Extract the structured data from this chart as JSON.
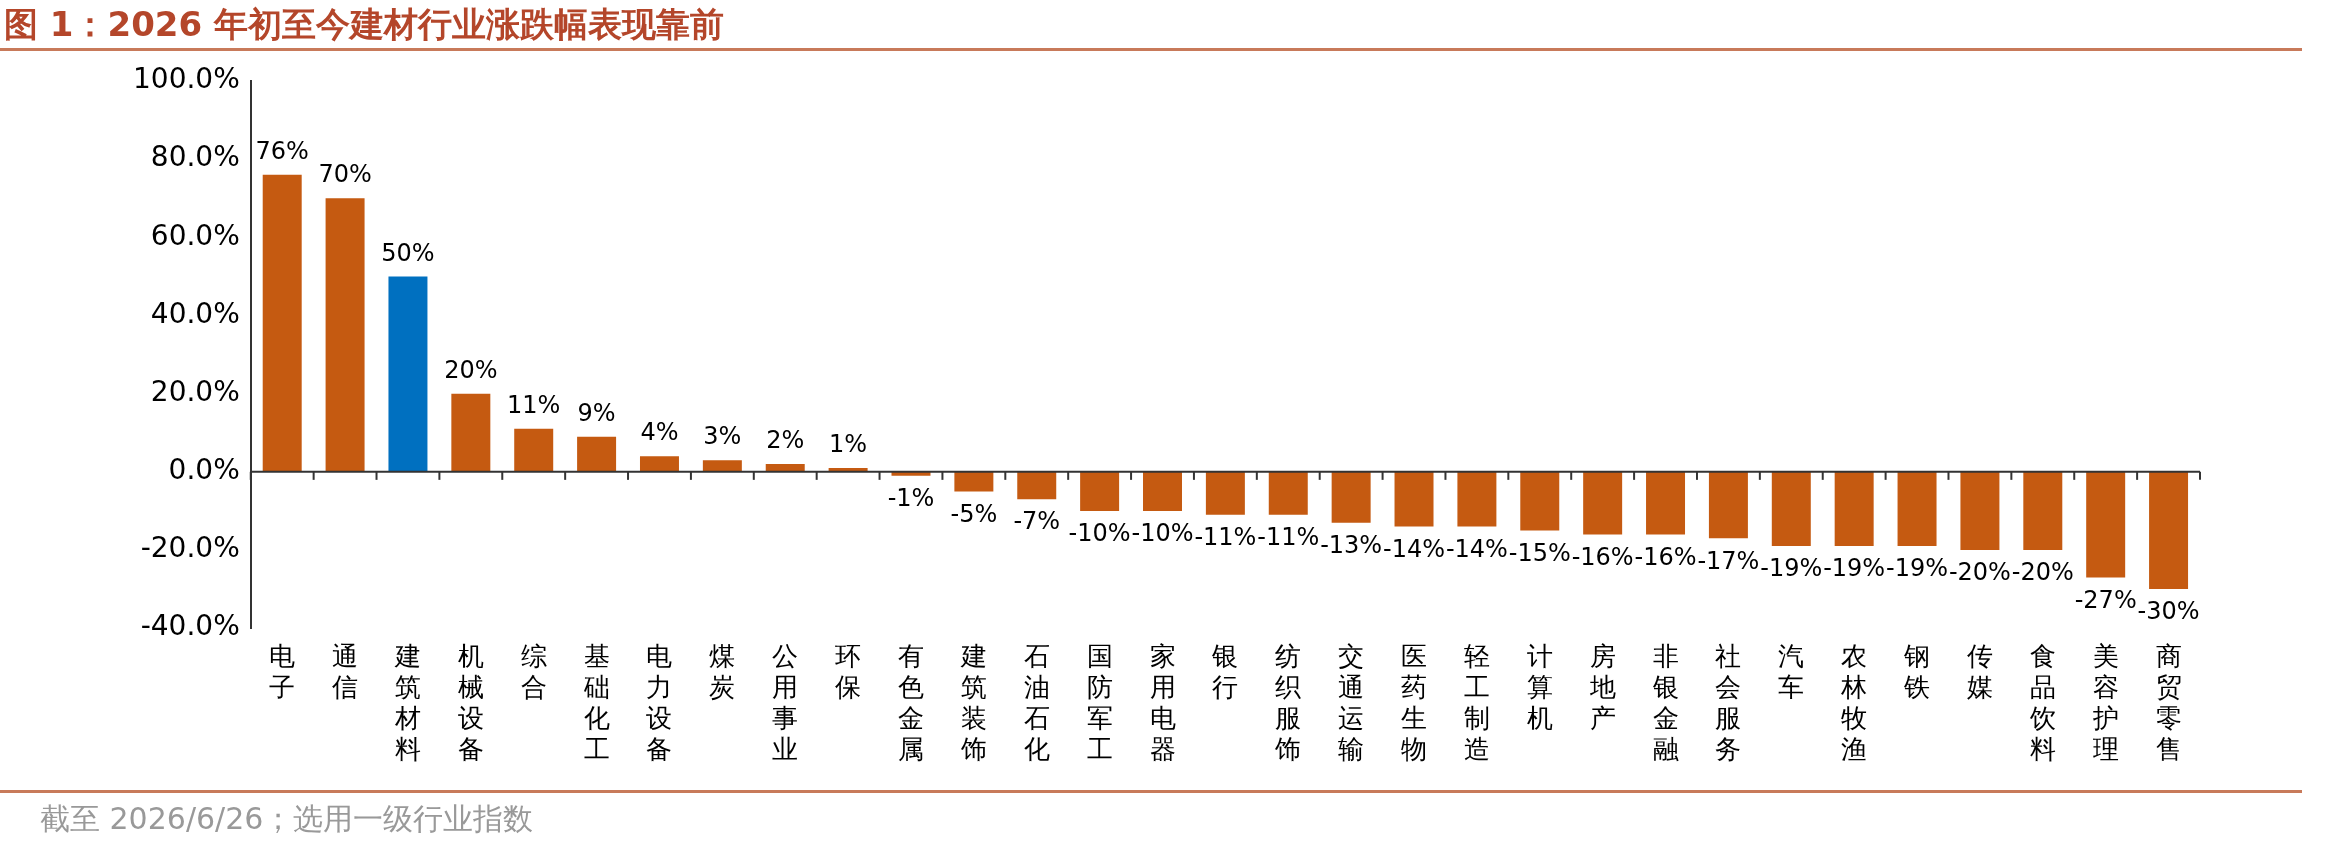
{
  "chart_data": {
    "type": "bar",
    "title": "图 1：2026 年初至今建材行业涨跌幅表现靠前",
    "categories": [
      "电子",
      "通信",
      "建筑材料",
      "机械设备",
      "综合",
      "基础化工",
      "电力设备",
      "煤炭",
      "公用事业",
      "环保",
      "有色金属",
      "建筑装饰",
      "石油石化",
      "国防军工",
      "家用电器",
      "银行",
      "纺织服饰",
      "交通运输",
      "医药生物",
      "轻工制造",
      "计算机",
      "房地产",
      "非银金融",
      "社会服务",
      "汽车",
      "农林牧渔",
      "钢铁",
      "传媒",
      "食品饮料",
      "美容护理",
      "商贸零售"
    ],
    "values": [
      76,
      70,
      50,
      20,
      11,
      9,
      4,
      3,
      2,
      1,
      -1,
      -5,
      -7,
      -10,
      -10,
      -11,
      -11,
      -13,
      -14,
      -14,
      -15,
      -16,
      -16,
      -17,
      -19,
      -19,
      -19,
      -20,
      -20,
      -27,
      -30
    ],
    "value_labels": [
      "76%",
      "70%",
      "50%",
      "20%",
      "11%",
      "9%",
      "4%",
      "3%",
      "2%",
      "1%",
      "-1%",
      "-5%",
      "-7%",
      "-10%",
      "-10%",
      "-11%",
      "-11%",
      "-13%",
      "-14%",
      "-14%",
      "-15%",
      "-16%",
      "-16%",
      "-17%",
      "-19%",
      "-19%",
      "-19%",
      "-20%",
      "-20%",
      "-27%",
      "-30%"
    ],
    "colors": [
      "#c55a11",
      "#c55a11",
      "#0070c0",
      "#c55a11",
      "#c55a11",
      "#c55a11",
      "#c55a11",
      "#c55a11",
      "#c55a11",
      "#c55a11",
      "#c55a11",
      "#c55a11",
      "#c55a11",
      "#c55a11",
      "#c55a11",
      "#c55a11",
      "#c55a11",
      "#c55a11",
      "#c55a11",
      "#c55a11",
      "#c55a11",
      "#c55a11",
      "#c55a11",
      "#c55a11",
      "#c55a11",
      "#c55a11",
      "#c55a11",
      "#c55a11",
      "#c55a11",
      "#c55a11",
      "#c55a11"
    ],
    "ylim": [
      -40,
      100
    ],
    "yticks": [
      {
        "value": -40,
        "label": "-40.0%"
      },
      {
        "value": -20,
        "label": "-20.0%"
      },
      {
        "value": 0,
        "label": "0.0%"
      },
      {
        "value": 20,
        "label": "20.0%"
      },
      {
        "value": 40,
        "label": "40.0%"
      },
      {
        "value": 60,
        "label": "60.0%"
      },
      {
        "value": 80,
        "label": "80.0%"
      },
      {
        "value": 100,
        "label": "100.0%"
      }
    ],
    "annotations": [
      "截至 2026/6/26；选用一级行业指数"
    ]
  }
}
